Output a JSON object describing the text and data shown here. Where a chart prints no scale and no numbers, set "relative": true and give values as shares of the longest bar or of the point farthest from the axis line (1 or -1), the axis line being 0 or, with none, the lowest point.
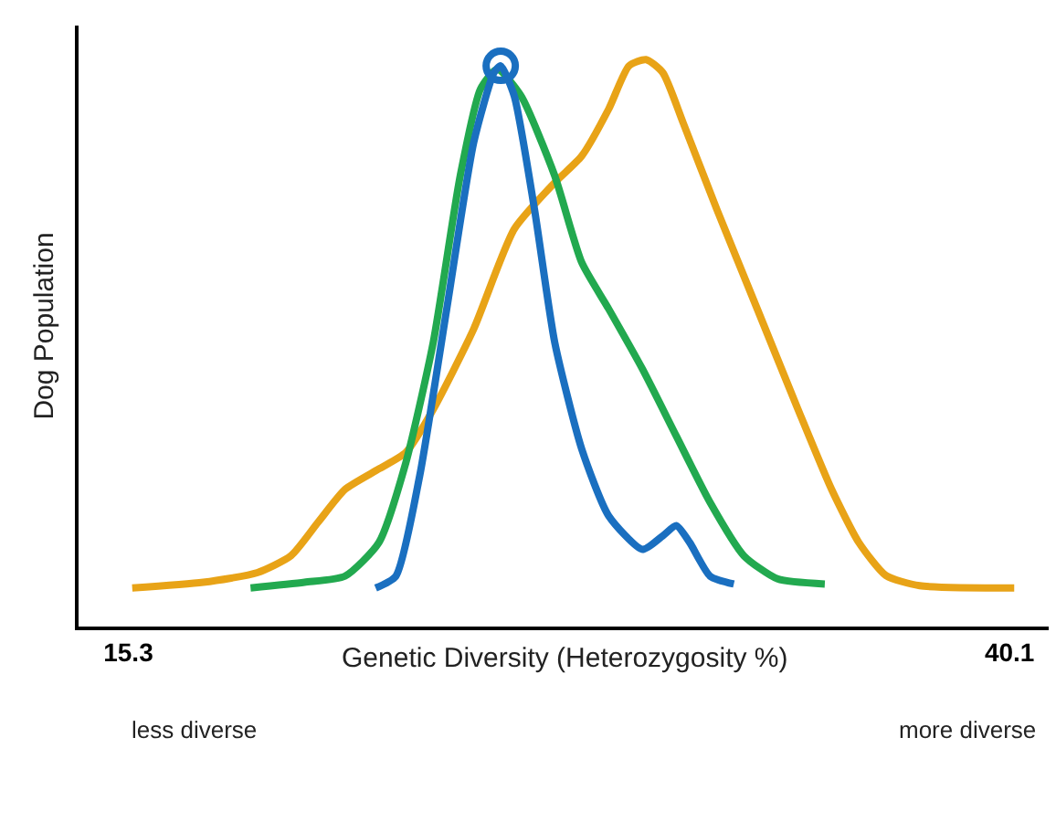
{
  "chart_data": {
    "type": "line",
    "relative": true,
    "xlabel": "Genetic Diversity (Heterozygosity %)",
    "ylabel": "Dog Population",
    "xlim": [
      13.9,
      41.2
    ],
    "xticks": [
      15.3,
      40.1
    ],
    "line_style": "solid",
    "marker": "none",
    "annotations": [
      "less diverse",
      "more diverse"
    ],
    "series": [
      {
        "color": "#e8a317",
        "x": [
          15.41,
          17.41,
          18.93,
          19.88,
          20.64,
          21.4,
          22.35,
          23.11,
          23.88,
          25.02,
          26.16,
          27.3,
          28.06,
          28.82,
          29.39,
          29.87,
          30.34,
          30.91,
          31.86,
          33.0,
          34.14,
          35.09,
          35.86,
          36.62,
          37.57,
          40.23
        ],
        "values": [
          0.068,
          0.078,
          0.095,
          0.125,
          0.184,
          0.242,
          0.278,
          0.307,
          0.383,
          0.525,
          0.701,
          0.783,
          0.83,
          0.913,
          0.989,
          1.0,
          0.977,
          0.889,
          0.736,
          0.56,
          0.384,
          0.242,
          0.148,
          0.09,
          0.072,
          0.068
        ]
      },
      {
        "color": "#22a94f",
        "x": [
          18.74,
          20.26,
          21.4,
          22.35,
          23.11,
          23.88,
          24.64,
          25.21,
          25.68,
          26.35,
          27.3,
          28.06,
          28.82,
          29.77,
          30.72,
          31.67,
          32.62,
          33.57,
          34.9
        ],
        "values": [
          0.068,
          0.078,
          0.089,
          0.148,
          0.289,
          0.501,
          0.795,
          0.948,
          0.983,
          0.936,
          0.795,
          0.642,
          0.56,
          0.454,
          0.336,
          0.219,
          0.125,
          0.084,
          0.075
        ]
      },
      {
        "color": "#1a6fc0",
        "x": [
          22.26,
          22.83,
          23.5,
          24.26,
          25.02,
          25.59,
          25.78,
          26.16,
          26.73,
          27.3,
          28.06,
          28.82,
          29.77,
          30.34,
          30.72,
          31.1,
          31.67,
          32.34
        ],
        "values": [
          0.068,
          0.089,
          0.266,
          0.56,
          0.854,
          0.977,
          0.989,
          0.936,
          0.736,
          0.501,
          0.313,
          0.195,
          0.136,
          0.16,
          0.178,
          0.148,
          0.089,
          0.075
        ]
      },
      {
        "type": "scatter",
        "marker": "circle",
        "color": "#1a6fc0",
        "x": [
          25.78
        ],
        "values": [
          0.989
        ]
      }
    ]
  }
}
